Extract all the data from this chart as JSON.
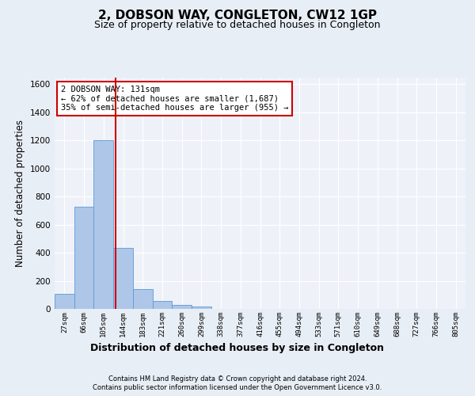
{
  "title": "2, DOBSON WAY, CONGLETON, CW12 1GP",
  "subtitle": "Size of property relative to detached houses in Congleton",
  "xlabel": "Distribution of detached houses by size in Congleton",
  "ylabel": "Number of detached properties",
  "categories": [
    "27sqm",
    "66sqm",
    "105sqm",
    "144sqm",
    "183sqm",
    "221sqm",
    "260sqm",
    "299sqm",
    "338sqm",
    "377sqm",
    "416sqm",
    "455sqm",
    "494sqm",
    "533sqm",
    "571sqm",
    "610sqm",
    "649sqm",
    "688sqm",
    "727sqm",
    "766sqm",
    "805sqm"
  ],
  "bar_values": [
    105,
    730,
    1200,
    435,
    140,
    55,
    30,
    15,
    0,
    0,
    0,
    0,
    0,
    0,
    0,
    0,
    0,
    0,
    0,
    0,
    0
  ],
  "bar_color": "#aec6e8",
  "bar_edge_color": "#5b9bd5",
  "vline_x": 2.62,
  "vline_color": "#cc0000",
  "annotation_text": "2 DOBSON WAY: 131sqm\n← 62% of detached houses are smaller (1,687)\n35% of semi-detached houses are larger (955) →",
  "annotation_box_color": "#ffffff",
  "annotation_box_edge_color": "#cc0000",
  "ylim": [
    0,
    1650
  ],
  "yticks": [
    0,
    200,
    400,
    600,
    800,
    1000,
    1200,
    1400,
    1600
  ],
  "bg_color": "#e8eef5",
  "plot_bg_color": "#eef2f8",
  "footer_line1": "Contains HM Land Registry data © Crown copyright and database right 2024.",
  "footer_line2": "Contains public sector information licensed under the Open Government Licence v3.0.",
  "title_fontsize": 11,
  "subtitle_fontsize": 9,
  "xlabel_fontsize": 9,
  "ylabel_fontsize": 8.5,
  "tick_fontsize": 7.5,
  "xtick_fontsize": 6.5,
  "ann_fontsize": 7.5,
  "footer_fontsize": 6.0
}
